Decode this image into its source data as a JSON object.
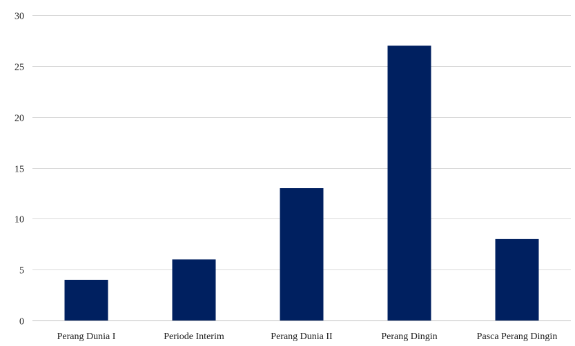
{
  "chart_data": {
    "type": "bar",
    "categories": [
      "Perang Dunia I",
      "Periode Interim",
      "Perang Dunia II",
      "Perang Dingin",
      "Pasca Perang Dingin"
    ],
    "values": [
      4,
      6,
      13,
      27,
      8
    ],
    "ylim": [
      0,
      30
    ],
    "yticks": [
      0,
      5,
      10,
      15,
      20,
      25,
      30
    ],
    "grid": true,
    "bar_color": "#002060"
  }
}
